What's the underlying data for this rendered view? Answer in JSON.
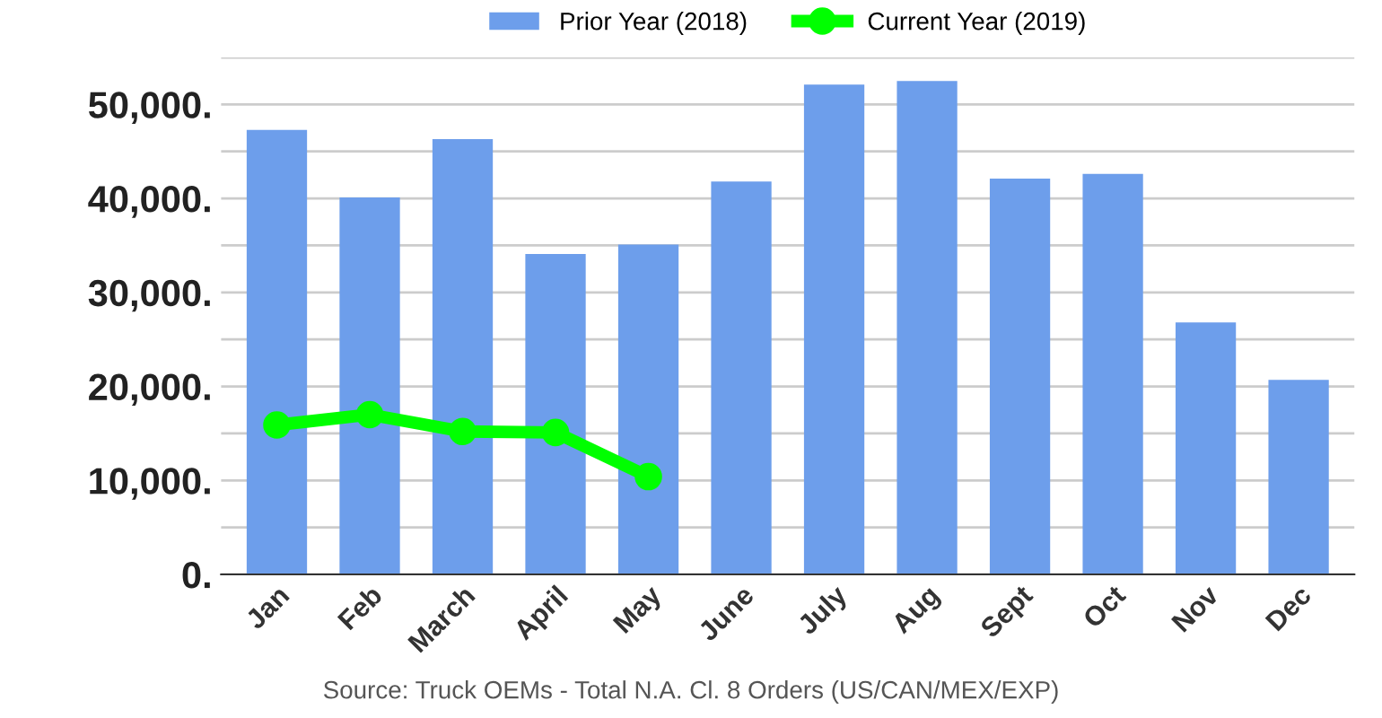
{
  "chart_data": {
    "type": "bar",
    "categories": [
      "Jan",
      "Feb",
      "March",
      "April",
      "May",
      "June",
      "July",
      "Aug",
      "Sept",
      "Oct",
      "Nov",
      "Dec"
    ],
    "series": [
      {
        "name": "Prior Year (2018)",
        "color": "#6d9eeb",
        "values": [
          47300,
          40100,
          46300,
          34100,
          35100,
          41800,
          52100,
          52500,
          42100,
          42600,
          26800,
          20700
        ]
      },
      {
        "name": "Current Year (2019)",
        "type": "line",
        "color": "#00ff00",
        "marker": "circle",
        "values": [
          15900,
          17000,
          15200,
          15100,
          10400,
          null,
          null,
          null,
          null,
          null,
          null,
          null
        ]
      }
    ],
    "ylim": [
      0,
      55000
    ],
    "yticks": [
      {
        "value": 0,
        "label": "0."
      },
      {
        "value": 5000,
        "label": null
      },
      {
        "value": 10000,
        "label": "10,000."
      },
      {
        "value": 15000,
        "label": null
      },
      {
        "value": 20000,
        "label": "20,000."
      },
      {
        "value": 25000,
        "label": null
      },
      {
        "value": 30000,
        "label": "30,000."
      },
      {
        "value": 35000,
        "label": null
      },
      {
        "value": 40000,
        "label": "40,000."
      },
      {
        "value": 45000,
        "label": null
      },
      {
        "value": 50000,
        "label": "50,000."
      },
      {
        "value": 55000,
        "label": null
      }
    ],
    "grid": "y",
    "legend": "top",
    "annotations": [
      "Source: Truck OEMs - Total N.A. Cl. 8 Orders (US/CAN/MEX/EXP)"
    ]
  }
}
